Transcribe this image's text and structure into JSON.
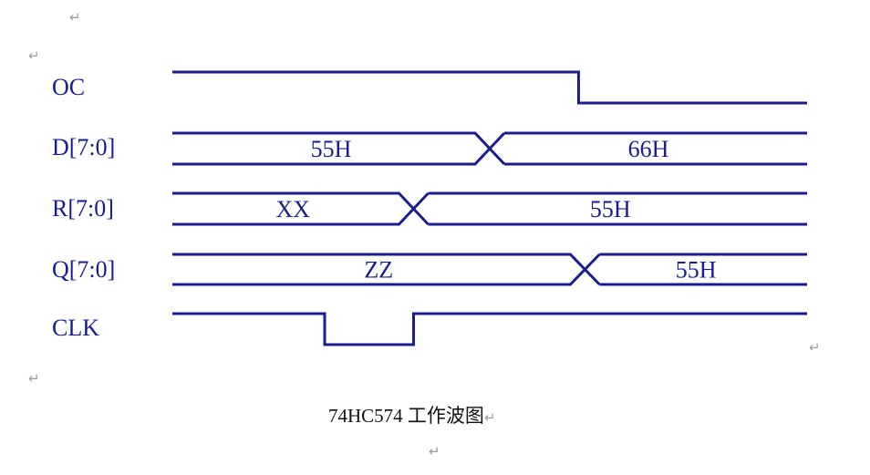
{
  "signals": [
    {
      "name": "OC",
      "type": "digital",
      "edges": [
        {
          "t": 0,
          "level": 1
        },
        {
          "t": 0.64,
          "level": 0
        }
      ]
    },
    {
      "name": "D[7:0]",
      "type": "bus",
      "transitions": [
        0.5
      ],
      "values": [
        "55H",
        "66H"
      ]
    },
    {
      "name": "R[7:0]",
      "type": "bus",
      "transitions": [
        0.38
      ],
      "values": [
        "XX",
        "55H"
      ]
    },
    {
      "name": "Q[7:0]",
      "type": "bus",
      "transitions": [
        0.65
      ],
      "values": [
        "ZZ",
        "55H"
      ]
    },
    {
      "name": "CLK",
      "type": "digital",
      "edges": [
        {
          "t": 0,
          "level": 1
        },
        {
          "t": 0.24,
          "level": 0
        },
        {
          "t": 0.38,
          "level": 1
        }
      ]
    }
  ],
  "caption": {
    "text": "74HC574 工作波图",
    "return_mark": "↵"
  },
  "paragraph_mark": "↵",
  "colors": {
    "wave": "#1c1c8c",
    "label": "#1c1c8c",
    "paragraph_mark": "#9a9a9a"
  }
}
